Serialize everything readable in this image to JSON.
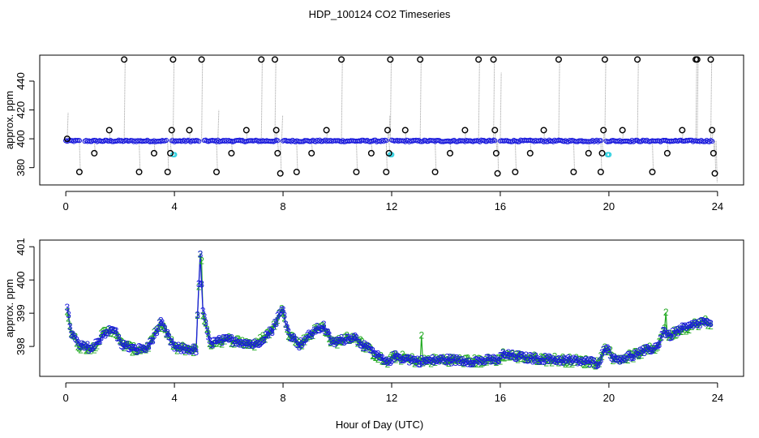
{
  "figure": {
    "title": "HDP_100124  CO2 Timeseries",
    "xlabel": "Hour of Day (UTC)"
  },
  "chart_data": [
    {
      "type": "scatter",
      "panel": "top",
      "ylabel": "approx. ppm",
      "xlim": [
        -0.96,
        24.96
      ],
      "ylim": [
        368,
        458
      ],
      "xticks": [
        0,
        4,
        8,
        12,
        16,
        20,
        24
      ],
      "yticks": [
        380,
        400,
        420,
        440
      ],
      "grid": false,
      "colors": {
        "baseline": "#1a1adc",
        "markers": "#000000",
        "cyan_markers": "#30d0e0",
        "spikes": "#999999"
      },
      "baseline_ppm": 398.5,
      "gap_hours": [
        0.6,
        3.8,
        5.0,
        7.9,
        11.9,
        15.9,
        19.8,
        23.9
      ],
      "spike_points": [
        {
          "x": 0.05,
          "y": 400
        },
        {
          "x": 0.5,
          "y": 377
        },
        {
          "x": 1.05,
          "y": 390
        },
        {
          "x": 1.6,
          "y": 406
        },
        {
          "x": 2.15,
          "y": 455
        },
        {
          "x": 2.7,
          "y": 377
        },
        {
          "x": 3.25,
          "y": 390
        },
        {
          "x": 3.75,
          "y": 377
        },
        {
          "x": 3.85,
          "y": 390
        },
        {
          "x": 3.9,
          "y": 406
        },
        {
          "x": 3.95,
          "y": 455
        },
        {
          "x": 4.55,
          "y": 406
        },
        {
          "x": 5.0,
          "y": 455
        },
        {
          "x": 5.55,
          "y": 377
        },
        {
          "x": 6.1,
          "y": 390
        },
        {
          "x": 6.65,
          "y": 406
        },
        {
          "x": 7.2,
          "y": 455
        },
        {
          "x": 7.7,
          "y": 455
        },
        {
          "x": 7.75,
          "y": 406
        },
        {
          "x": 7.8,
          "y": 390
        },
        {
          "x": 7.9,
          "y": 376
        },
        {
          "x": 8.5,
          "y": 377
        },
        {
          "x": 9.05,
          "y": 390
        },
        {
          "x": 9.6,
          "y": 406
        },
        {
          "x": 10.15,
          "y": 455
        },
        {
          "x": 10.7,
          "y": 377
        },
        {
          "x": 11.25,
          "y": 390
        },
        {
          "x": 11.8,
          "y": 377
        },
        {
          "x": 11.85,
          "y": 406
        },
        {
          "x": 11.9,
          "y": 390
        },
        {
          "x": 11.95,
          "y": 455
        },
        {
          "x": 12.5,
          "y": 406
        },
        {
          "x": 13.05,
          "y": 455
        },
        {
          "x": 13.6,
          "y": 377
        },
        {
          "x": 14.15,
          "y": 390
        },
        {
          "x": 14.7,
          "y": 406
        },
        {
          "x": 15.2,
          "y": 455
        },
        {
          "x": 15.75,
          "y": 455
        },
        {
          "x": 15.8,
          "y": 406
        },
        {
          "x": 15.85,
          "y": 390
        },
        {
          "x": 15.9,
          "y": 376
        },
        {
          "x": 16.55,
          "y": 377
        },
        {
          "x": 17.1,
          "y": 390
        },
        {
          "x": 17.6,
          "y": 406
        },
        {
          "x": 18.15,
          "y": 455
        },
        {
          "x": 18.7,
          "y": 377
        },
        {
          "x": 19.25,
          "y": 390
        },
        {
          "x": 19.7,
          "y": 377
        },
        {
          "x": 19.75,
          "y": 390
        },
        {
          "x": 19.8,
          "y": 406
        },
        {
          "x": 19.85,
          "y": 455
        },
        {
          "x": 20.5,
          "y": 406
        },
        {
          "x": 21.05,
          "y": 455
        },
        {
          "x": 21.6,
          "y": 377
        },
        {
          "x": 22.15,
          "y": 390
        },
        {
          "x": 22.7,
          "y": 406
        },
        {
          "x": 23.2,
          "y": 455
        },
        {
          "x": 23.25,
          "y": 455
        },
        {
          "x": 23.75,
          "y": 455
        },
        {
          "x": 23.8,
          "y": 406
        },
        {
          "x": 23.85,
          "y": 390
        },
        {
          "x": 23.9,
          "y": 376
        }
      ],
      "cyan_points": [
        {
          "x": 3.95,
          "y": 389
        },
        {
          "x": 4.0,
          "y": 389
        },
        {
          "x": 11.95,
          "y": 389
        },
        {
          "x": 12.0,
          "y": 389
        },
        {
          "x": 19.95,
          "y": 389
        },
        {
          "x": 20.0,
          "y": 389
        }
      ],
      "extra_spike_lines": [
        {
          "x": 0.05,
          "y": 418
        },
        {
          "x": 5.6,
          "y": 420
        },
        {
          "x": 7.95,
          "y": 416
        },
        {
          "x": 11.9,
          "y": 416
        },
        {
          "x": 16.0,
          "y": 446
        },
        {
          "x": 23.95,
          "y": 370
        }
      ]
    },
    {
      "type": "line",
      "panel": "bottom",
      "ylabel": "approx. ppm",
      "xlim": [
        -0.96,
        24.96
      ],
      "ylim": [
        397.1,
        401.2
      ],
      "xticks": [
        0,
        4,
        8,
        12,
        16,
        20,
        24
      ],
      "yticks": [
        398,
        399,
        400,
        401
      ],
      "grid": false,
      "colors": {
        "series_3": "#1a1adc",
        "series_2": "#22aa22"
      },
      "marker_labels": [
        "3",
        "2"
      ],
      "profile_keypoints": [
        [
          0.05,
          399.1
        ],
        [
          0.2,
          398.4
        ],
        [
          0.5,
          398.0
        ],
        [
          1.0,
          397.95
        ],
        [
          1.4,
          398.4
        ],
        [
          1.8,
          398.5
        ],
        [
          2.0,
          398.1
        ],
        [
          2.5,
          397.9
        ],
        [
          3.0,
          397.95
        ],
        [
          3.5,
          398.7
        ],
        [
          3.7,
          398.4
        ],
        [
          4.0,
          397.95
        ],
        [
          4.8,
          397.9
        ],
        [
          4.95,
          400.8
        ],
        [
          5.05,
          399.0
        ],
        [
          5.3,
          398.1
        ],
        [
          6.0,
          398.2
        ],
        [
          7.0,
          398.05
        ],
        [
          7.6,
          398.5
        ],
        [
          7.85,
          398.95
        ],
        [
          8.0,
          399.1
        ],
        [
          8.2,
          398.4
        ],
        [
          8.6,
          398.05
        ],
        [
          9.2,
          398.5
        ],
        [
          9.5,
          398.6
        ],
        [
          9.8,
          398.1
        ],
        [
          10.6,
          398.3
        ],
        [
          11.0,
          398.0
        ],
        [
          11.8,
          397.5
        ],
        [
          12.1,
          397.7
        ],
        [
          13.0,
          397.55
        ],
        [
          14.0,
          397.6
        ],
        [
          15.0,
          397.55
        ],
        [
          15.95,
          397.6
        ],
        [
          16.1,
          397.75
        ],
        [
          17.0,
          397.65
        ],
        [
          18.0,
          397.6
        ],
        [
          19.0,
          397.55
        ],
        [
          19.6,
          397.5
        ],
        [
          19.9,
          398.0
        ],
        [
          20.2,
          397.6
        ],
        [
          20.8,
          397.7
        ],
        [
          21.8,
          398.0
        ],
        [
          22.0,
          398.5
        ],
        [
          22.2,
          398.3
        ],
        [
          22.6,
          398.5
        ],
        [
          23.0,
          398.6
        ],
        [
          23.5,
          398.75
        ],
        [
          23.8,
          398.6
        ]
      ],
      "series_2_spike_hours": [
        5.0,
        13.1,
        22.1
      ]
    }
  ]
}
